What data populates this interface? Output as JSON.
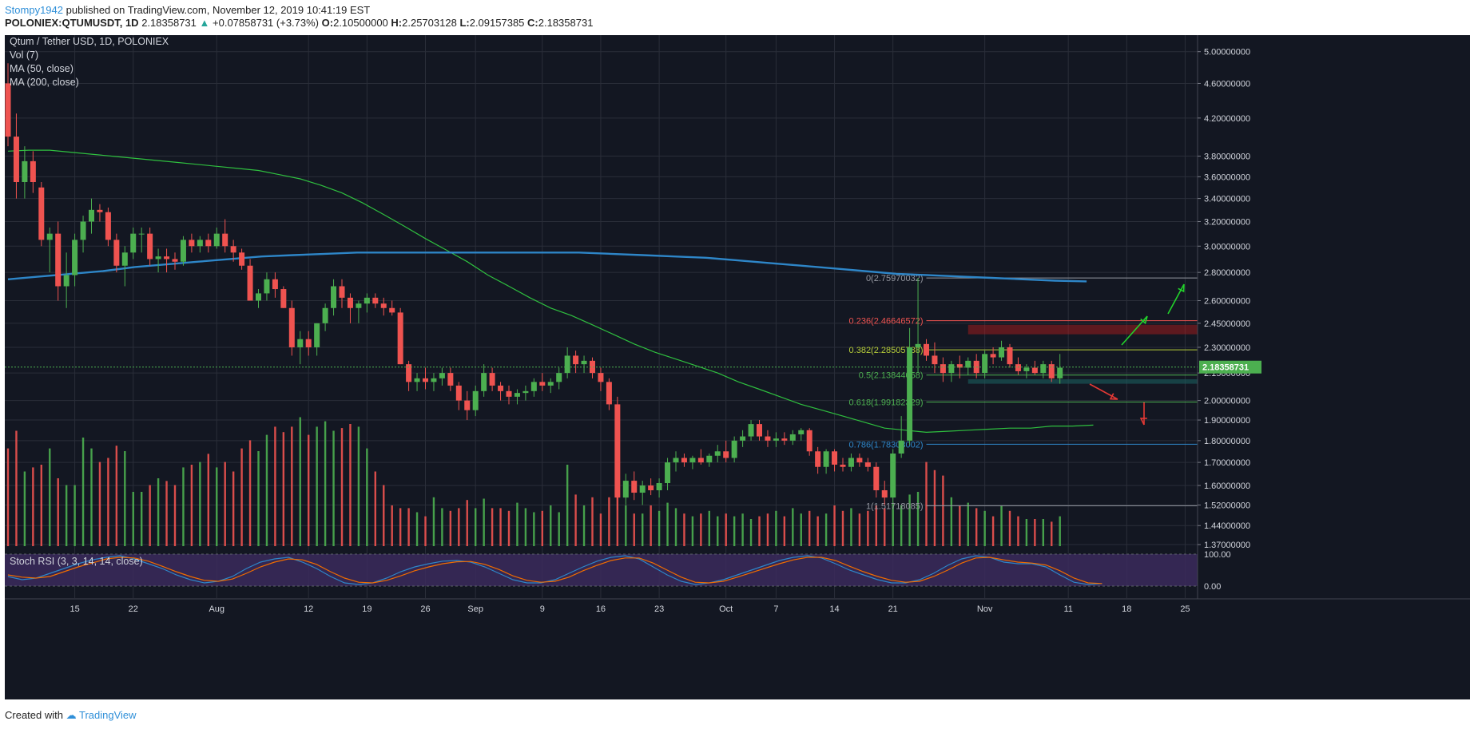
{
  "header": {
    "user": "Stompy1942",
    "published": "published on TradingView.com, November 12, 2019 10:41:19 EST"
  },
  "ohlc": {
    "symbol": "POLONIEX:QTUMUSDT, 1D",
    "price": "2.18358731",
    "change_arrow": "▲",
    "change": "+0.07858731 (+3.73%)",
    "o_label": "O:",
    "o": "2.10500000",
    "h_label": "H:",
    "h": "2.25703128",
    "l_label": "L:",
    "l": "2.09157385",
    "c_label": "C:",
    "c": "2.18358731"
  },
  "legend": {
    "title": "Qtum / Tether USD, 1D, POLONIEX",
    "vol": "Vol (7)",
    "ma50": "MA (50, close)",
    "ma200": "MA (200, close)",
    "stoch": "Stoch RSI (3, 3, 14, 14, close)"
  },
  "footer": {
    "created_with": "Created with",
    "brand": "TradingView"
  },
  "colors": {
    "background": "#131722",
    "up": "#26a69a",
    "candle_up": "#4caf50",
    "candle_down": "#ef5350",
    "ma50": "#2fbf3f",
    "ma200": "#2e86c8",
    "fib_0236": "#ef5350",
    "fib_0382": "#b8cf3a",
    "fib_05": "#4caf50",
    "fib_0618": "#4caf50",
    "fib_0786": "#2e86c8",
    "fib_1": "#9598a1",
    "grid": "#2a2e39",
    "stoch_k": "#2e86c8",
    "stoch_d": "#ef6c00",
    "stoch_band": "#3b2a5c"
  },
  "chart_data": {
    "type": "candlestick",
    "title": "Qtum / Tether USD, 1D, POLONIEX",
    "scale": "log",
    "ylim": [
      1.37,
      5.2
    ],
    "y_ticks": [
      "5.00000000",
      "4.60000000",
      "4.20000000",
      "3.80000000",
      "3.60000000",
      "3.40000000",
      "3.20000000",
      "3.00000000",
      "2.80000000",
      "2.60000000",
      "2.45000000",
      "2.30000000",
      "2.15000000",
      "2.00000000",
      "1.90000000",
      "1.80000000",
      "1.70000000",
      "1.60000000",
      "1.52000000",
      "1.44000000",
      "1.37000000"
    ],
    "x_ticks": [
      {
        "label": "15",
        "day": 8
      },
      {
        "label": "22",
        "day": 15
      },
      {
        "label": "Aug",
        "day": 25
      },
      {
        "label": "12",
        "day": 36
      },
      {
        "label": "19",
        "day": 43
      },
      {
        "label": "26",
        "day": 50
      },
      {
        "label": "Sep",
        "day": 56
      },
      {
        "label": "9",
        "day": 64
      },
      {
        "label": "16",
        "day": 71
      },
      {
        "label": "23",
        "day": 78
      },
      {
        "label": "Oct",
        "day": 86
      },
      {
        "label": "7",
        "day": 92
      },
      {
        "label": "14",
        "day": 99
      },
      {
        "label": "21",
        "day": 106
      },
      {
        "label": "Nov",
        "day": 117
      },
      {
        "label": "11",
        "day": 127
      },
      {
        "label": "18",
        "day": 134
      },
      {
        "label": "25",
        "day": 141
      }
    ],
    "last_price": "2.18358731",
    "fibonacci": [
      {
        "level": "0",
        "value": "2.75970032",
        "label": "0(2.75970032)"
      },
      {
        "level": "0.236",
        "value": "2.46646572",
        "label": "0.236(2.46646572)"
      },
      {
        "level": "0.382",
        "value": "2.28505788",
        "label": "0.382(2.28505788)"
      },
      {
        "level": "0.5",
        "value": "2.13844058",
        "label": "0.5(2.13844058)"
      },
      {
        "level": "0.618",
        "value": "1.99182329",
        "label": "0.618(1.99182329)"
      },
      {
        "level": "0.786",
        "value": "1.78308002",
        "label": "0.786(1.78308002)"
      },
      {
        "level": "1",
        "value": "1.51718085",
        "label": "1(1.51718085)"
      }
    ],
    "candles": [
      [
        4.6,
        4.85,
        3.9,
        4.0
      ],
      [
        4.0,
        4.25,
        3.4,
        3.55
      ],
      [
        3.55,
        3.9,
        3.4,
        3.75
      ],
      [
        3.75,
        3.85,
        3.45,
        3.55
      ],
      [
        3.5,
        3.55,
        3.0,
        3.05
      ],
      [
        3.05,
        3.15,
        2.8,
        3.1
      ],
      [
        3.1,
        3.2,
        2.6,
        2.7
      ],
      [
        2.7,
        2.95,
        2.55,
        2.78
      ],
      [
        2.78,
        3.1,
        2.7,
        3.05
      ],
      [
        3.05,
        3.25,
        2.95,
        3.2
      ],
      [
        3.2,
        3.4,
        3.1,
        3.3
      ],
      [
        3.3,
        3.35,
        3.2,
        3.28
      ],
      [
        3.28,
        3.32,
        3.0,
        3.05
      ],
      [
        3.05,
        3.1,
        2.8,
        2.85
      ],
      [
        2.85,
        3.0,
        2.7,
        2.95
      ],
      [
        2.95,
        3.15,
        2.9,
        3.1
      ],
      [
        3.1,
        3.15,
        2.95,
        3.1
      ],
      [
        3.1,
        3.15,
        2.85,
        2.9
      ],
      [
        2.9,
        2.98,
        2.8,
        2.92
      ],
      [
        2.92,
        2.98,
        2.8,
        2.9
      ],
      [
        2.9,
        2.95,
        2.82,
        2.88
      ],
      [
        2.88,
        3.08,
        2.85,
        3.05
      ],
      [
        3.05,
        3.1,
        2.95,
        3.0
      ],
      [
        3.0,
        3.08,
        2.95,
        3.05
      ],
      [
        3.05,
        3.1,
        2.95,
        3.0
      ],
      [
        3.0,
        3.15,
        2.98,
        3.1
      ],
      [
        3.1,
        3.22,
        2.95,
        3.0
      ],
      [
        3.0,
        3.05,
        2.88,
        2.95
      ],
      [
        2.95,
        2.98,
        2.82,
        2.85
      ],
      [
        2.85,
        2.9,
        2.6,
        2.6
      ],
      [
        2.6,
        2.68,
        2.55,
        2.65
      ],
      [
        2.65,
        2.8,
        2.6,
        2.75
      ],
      [
        2.75,
        2.8,
        2.62,
        2.68
      ],
      [
        2.68,
        2.7,
        2.55,
        2.55
      ],
      [
        2.55,
        2.6,
        2.25,
        2.3
      ],
      [
        2.3,
        2.4,
        2.2,
        2.35
      ],
      [
        2.35,
        2.4,
        2.25,
        2.3
      ],
      [
        2.3,
        2.45,
        2.25,
        2.45
      ],
      [
        2.45,
        2.58,
        2.4,
        2.55
      ],
      [
        2.55,
        2.75,
        2.5,
        2.7
      ],
      [
        2.7,
        2.75,
        2.55,
        2.62
      ],
      [
        2.62,
        2.65,
        2.45,
        2.55
      ],
      [
        2.55,
        2.6,
        2.45,
        2.58
      ],
      [
        2.58,
        2.65,
        2.52,
        2.62
      ],
      [
        2.62,
        2.65,
        2.55,
        2.58
      ],
      [
        2.58,
        2.62,
        2.5,
        2.55
      ],
      [
        2.55,
        2.6,
        2.5,
        2.52
      ],
      [
        2.52,
        2.55,
        2.2,
        2.2
      ],
      [
        2.2,
        2.22,
        2.05,
        2.1
      ],
      [
        2.1,
        2.15,
        2.05,
        2.12
      ],
      [
        2.12,
        2.18,
        2.06,
        2.1
      ],
      [
        2.1,
        2.15,
        2.05,
        2.12
      ],
      [
        2.12,
        2.18,
        2.08,
        2.15
      ],
      [
        2.15,
        2.18,
        2.05,
        2.08
      ],
      [
        2.08,
        2.1,
        1.95,
        2.0
      ],
      [
        2.0,
        2.05,
        1.9,
        1.95
      ],
      [
        1.95,
        2.08,
        1.92,
        2.05
      ],
      [
        2.05,
        2.2,
        2.02,
        2.15
      ],
      [
        2.15,
        2.18,
        2.05,
        2.08
      ],
      [
        2.08,
        2.1,
        2.0,
        2.05
      ],
      [
        2.05,
        2.08,
        1.98,
        2.02
      ],
      [
        2.02,
        2.06,
        1.98,
        2.04
      ],
      [
        2.04,
        2.08,
        2.0,
        2.05
      ],
      [
        2.05,
        2.12,
        2.02,
        2.1
      ],
      [
        2.1,
        2.15,
        2.05,
        2.08
      ],
      [
        2.08,
        2.12,
        2.04,
        2.1
      ],
      [
        2.1,
        2.18,
        2.06,
        2.15
      ],
      [
        2.15,
        2.3,
        2.12,
        2.25
      ],
      [
        2.25,
        2.28,
        2.15,
        2.2
      ],
      [
        2.2,
        2.25,
        2.15,
        2.22
      ],
      [
        2.22,
        2.24,
        2.12,
        2.15
      ],
      [
        2.15,
        2.18,
        2.05,
        2.1
      ],
      [
        2.1,
        2.12,
        1.95,
        1.98
      ],
      [
        1.98,
        2.02,
        1.5,
        1.55
      ],
      [
        1.55,
        1.65,
        1.52,
        1.62
      ],
      [
        1.62,
        1.66,
        1.54,
        1.57
      ],
      [
        1.57,
        1.62,
        1.52,
        1.6
      ],
      [
        1.6,
        1.63,
        1.56,
        1.58
      ],
      [
        1.58,
        1.63,
        1.55,
        1.61
      ],
      [
        1.61,
        1.72,
        1.58,
        1.7
      ],
      [
        1.7,
        1.75,
        1.66,
        1.72
      ],
      [
        1.72,
        1.74,
        1.68,
        1.7
      ],
      [
        1.7,
        1.73,
        1.67,
        1.72
      ],
      [
        1.72,
        1.76,
        1.69,
        1.7
      ],
      [
        1.7,
        1.74,
        1.68,
        1.73
      ],
      [
        1.73,
        1.78,
        1.7,
        1.75
      ],
      [
        1.75,
        1.8,
        1.7,
        1.72
      ],
      [
        1.72,
        1.82,
        1.7,
        1.8
      ],
      [
        1.8,
        1.85,
        1.77,
        1.82
      ],
      [
        1.82,
        1.9,
        1.8,
        1.88
      ],
      [
        1.88,
        1.9,
        1.8,
        1.82
      ],
      [
        1.82,
        1.85,
        1.77,
        1.8
      ],
      [
        1.8,
        1.84,
        1.77,
        1.81
      ],
      [
        1.81,
        1.84,
        1.78,
        1.8
      ],
      [
        1.8,
        1.85,
        1.78,
        1.83
      ],
      [
        1.83,
        1.86,
        1.8,
        1.85
      ],
      [
        1.85,
        1.86,
        1.73,
        1.75
      ],
      [
        1.75,
        1.77,
        1.65,
        1.68
      ],
      [
        1.68,
        1.76,
        1.65,
        1.75
      ],
      [
        1.75,
        1.76,
        1.66,
        1.69
      ],
      [
        1.69,
        1.72,
        1.66,
        1.68
      ],
      [
        1.68,
        1.74,
        1.66,
        1.72
      ],
      [
        1.72,
        1.74,
        1.68,
        1.7
      ],
      [
        1.7,
        1.72,
        1.66,
        1.68
      ],
      [
        1.68,
        1.7,
        1.55,
        1.58
      ],
      [
        1.58,
        1.62,
        1.52,
        1.55
      ],
      [
        1.55,
        1.76,
        1.53,
        1.74
      ],
      [
        1.74,
        1.92,
        1.72,
        1.8
      ],
      [
        1.8,
        2.42,
        1.78,
        2.3
      ],
      [
        2.3,
        2.76,
        2.15,
        2.32
      ],
      [
        2.32,
        2.35,
        2.22,
        2.25
      ],
      [
        2.25,
        2.33,
        2.15,
        2.2
      ],
      [
        2.2,
        2.24,
        2.1,
        2.15
      ],
      [
        2.15,
        2.22,
        2.1,
        2.2
      ],
      [
        2.2,
        2.25,
        2.12,
        2.18
      ],
      [
        2.18,
        2.24,
        2.14,
        2.22
      ],
      [
        2.22,
        2.26,
        2.12,
        2.15
      ],
      [
        2.15,
        2.28,
        2.12,
        2.26
      ],
      [
        2.26,
        2.3,
        2.2,
        2.24
      ],
      [
        2.24,
        2.34,
        2.22,
        2.3
      ],
      [
        2.3,
        2.32,
        2.18,
        2.2
      ],
      [
        2.2,
        2.24,
        2.14,
        2.16
      ],
      [
        2.16,
        2.2,
        2.12,
        2.18
      ],
      [
        2.18,
        2.22,
        2.14,
        2.15
      ],
      [
        2.15,
        2.22,
        2.12,
        2.2
      ],
      [
        2.2,
        2.22,
        2.1,
        2.12
      ],
      [
        2.12,
        2.26,
        2.09,
        2.18
      ]
    ],
    "ma50": [
      3.85,
      3.86,
      3.86,
      3.84,
      3.82,
      3.8,
      3.78,
      3.76,
      3.74,
      3.72,
      3.7,
      3.68,
      3.66,
      3.62,
      3.58,
      3.52,
      3.45,
      3.36,
      3.26,
      3.16,
      3.06,
      2.97,
      2.88,
      2.78,
      2.7,
      2.62,
      2.55,
      2.5,
      2.44,
      2.38,
      2.32,
      2.27,
      2.23,
      2.19,
      2.15,
      2.1,
      2.06,
      2.02,
      1.98,
      1.95,
      1.92,
      1.89,
      1.86,
      1.85,
      1.84,
      1.845,
      1.85,
      1.855,
      1.86,
      1.86,
      1.87,
      1.87,
      1.875
    ],
    "ma200": [
      2.75,
      2.77,
      2.79,
      2.81,
      2.84,
      2.86,
      2.88,
      2.9,
      2.92,
      2.93,
      2.94,
      2.95,
      2.95,
      2.95,
      2.95,
      2.95,
      2.95,
      2.95,
      2.95,
      2.94,
      2.93,
      2.92,
      2.91,
      2.89,
      2.87,
      2.85,
      2.83,
      2.81,
      2.79,
      2.78,
      2.77,
      2.76,
      2.75,
      2.74,
      2.735
    ],
    "volume": [
      0.72,
      0.85,
      0.55,
      0.58,
      0.6,
      0.72,
      0.5,
      0.45,
      0.45,
      0.8,
      0.72,
      0.62,
      0.65,
      0.74,
      0.7,
      0.4,
      0.4,
      0.45,
      0.5,
      0.48,
      0.45,
      0.58,
      0.6,
      0.62,
      0.68,
      0.58,
      0.62,
      0.55,
      0.72,
      0.78,
      0.7,
      0.82,
      0.88,
      0.84,
      0.88,
      0.95,
      0.82,
      0.88,
      0.92,
      0.85,
      0.87,
      0.9,
      0.88,
      0.72,
      0.55,
      0.45,
      0.3,
      0.28,
      0.28,
      0.25,
      0.22,
      0.36,
      0.28,
      0.26,
      0.28,
      0.34,
      0.28,
      0.35,
      0.28,
      0.28,
      0.26,
      0.32,
      0.28,
      0.25,
      0.26,
      0.3,
      0.25,
      0.6,
      0.38,
      0.3,
      0.36,
      0.24,
      0.36,
      0.48,
      0.3,
      0.24,
      0.24,
      0.3,
      0.26,
      0.32,
      0.28,
      0.24,
      0.22,
      0.24,
      0.26,
      0.22,
      0.24,
      0.22,
      0.24,
      0.2,
      0.22,
      0.24,
      0.26,
      0.22,
      0.28,
      0.24,
      0.26,
      0.22,
      0.24,
      0.3,
      0.26,
      0.28,
      0.24,
      0.26,
      0.3,
      0.28,
      0.32,
      0.3,
      0.38,
      0.4,
      0.62,
      0.56,
      0.52,
      0.36,
      0.3,
      0.32,
      0.28,
      0.26,
      0.22,
      0.3,
      0.26,
      0.22,
      0.2,
      0.2,
      0.2,
      0.18,
      0.22,
      0.26
    ],
    "stoch_k": [
      0.3,
      0.2,
      0.25,
      0.4,
      0.55,
      0.7,
      0.82,
      0.9,
      0.95,
      0.85,
      0.7,
      0.55,
      0.35,
      0.2,
      0.1,
      0.15,
      0.3,
      0.55,
      0.75,
      0.85,
      0.9,
      0.75,
      0.55,
      0.3,
      0.1,
      0.05,
      0.1,
      0.25,
      0.45,
      0.6,
      0.7,
      0.78,
      0.8,
      0.75,
      0.6,
      0.4,
      0.2,
      0.1,
      0.1,
      0.2,
      0.4,
      0.6,
      0.78,
      0.9,
      0.95,
      0.85,
      0.6,
      0.35,
      0.15,
      0.05,
      0.1,
      0.2,
      0.35,
      0.5,
      0.65,
      0.8,
      0.9,
      0.95,
      0.88,
      0.7,
      0.5,
      0.35,
      0.2,
      0.1,
      0.1,
      0.2,
      0.4,
      0.65,
      0.85,
      0.95,
      0.9,
      0.75,
      0.7,
      0.7,
      0.6,
      0.35,
      0.12,
      0.05,
      0.08
    ],
    "stoch_d": [
      0.35,
      0.28,
      0.25,
      0.3,
      0.45,
      0.6,
      0.72,
      0.85,
      0.9,
      0.88,
      0.78,
      0.62,
      0.45,
      0.3,
      0.18,
      0.15,
      0.22,
      0.4,
      0.6,
      0.75,
      0.85,
      0.82,
      0.68,
      0.45,
      0.25,
      0.12,
      0.1,
      0.18,
      0.32,
      0.48,
      0.6,
      0.7,
      0.76,
      0.77,
      0.68,
      0.52,
      0.32,
      0.18,
      0.12,
      0.15,
      0.28,
      0.48,
      0.65,
      0.8,
      0.88,
      0.88,
      0.72,
      0.5,
      0.28,
      0.12,
      0.1,
      0.15,
      0.28,
      0.42,
      0.56,
      0.7,
      0.82,
      0.9,
      0.9,
      0.8,
      0.62,
      0.45,
      0.3,
      0.18,
      0.12,
      0.15,
      0.3,
      0.5,
      0.72,
      0.88,
      0.9,
      0.82,
      0.75,
      0.72,
      0.66,
      0.48,
      0.25,
      0.1,
      0.08
    ],
    "stoch_ticks": [
      "100.00",
      "0.00"
    ]
  }
}
